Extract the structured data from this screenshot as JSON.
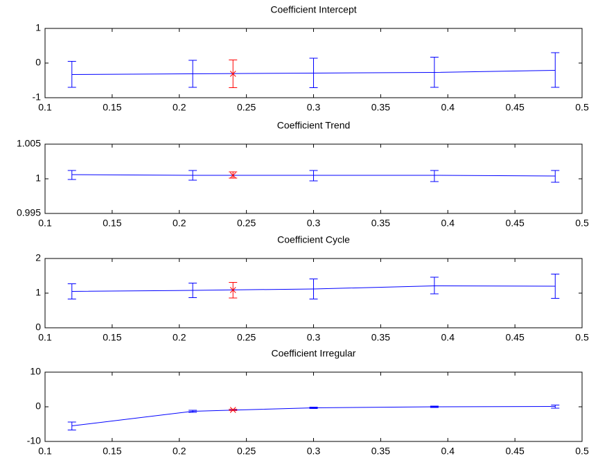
{
  "chart_data": [
    {
      "type": "errorbar",
      "title": "Coefficient Intercept",
      "xlim": [
        0.1,
        0.5
      ],
      "xticks": [
        0.1,
        0.15,
        0.2,
        0.25,
        0.3,
        0.35,
        0.4,
        0.45,
        0.5
      ],
      "ylim": [
        -1,
        1
      ],
      "yticks": [
        -1,
        0,
        1
      ],
      "series": [
        {
          "color": "#0000ff",
          "x": [
            0.12,
            0.21,
            0.3,
            0.39,
            0.48
          ],
          "values": [
            -0.33,
            -0.31,
            -0.29,
            -0.27,
            -0.21
          ],
          "lower": [
            -0.7,
            -0.7,
            -0.71,
            -0.7,
            -0.7
          ],
          "upper": [
            0.05,
            0.08,
            0.14,
            0.17,
            0.3
          ]
        },
        {
          "color": "#ff0000",
          "marker": "x",
          "x": [
            0.24
          ],
          "values": [
            -0.31
          ],
          "lower": [
            -0.71
          ],
          "upper": [
            0.09
          ]
        }
      ]
    },
    {
      "type": "errorbar",
      "title": "Coefficient Trend",
      "xlim": [
        0.1,
        0.5
      ],
      "xticks": [
        0.1,
        0.15,
        0.2,
        0.25,
        0.3,
        0.35,
        0.4,
        0.45,
        0.5
      ],
      "ylim": [
        0.995,
        1.005
      ],
      "yticks": [
        0.995,
        1,
        1.005
      ],
      "series": [
        {
          "color": "#0000ff",
          "x": [
            0.12,
            0.21,
            0.3,
            0.39,
            0.48
          ],
          "values": [
            1.0006,
            1.0005,
            1.0005,
            1.0005,
            1.0004
          ],
          "lower": [
            0.9999,
            0.9998,
            0.9997,
            0.9996,
            0.9995
          ],
          "upper": [
            1.0012,
            1.0012,
            1.0012,
            1.0012,
            1.0012
          ]
        },
        {
          "color": "#ff0000",
          "marker": "x",
          "x": [
            0.24
          ],
          "values": [
            1.0005
          ],
          "lower": [
            1.0001
          ],
          "upper": [
            1.001
          ]
        }
      ]
    },
    {
      "type": "errorbar",
      "title": "Coefficient Cycle",
      "xlim": [
        0.1,
        0.5
      ],
      "xticks": [
        0.1,
        0.15,
        0.2,
        0.25,
        0.3,
        0.35,
        0.4,
        0.45,
        0.5
      ],
      "ylim": [
        0,
        2
      ],
      "yticks": [
        0,
        1,
        2
      ],
      "series": [
        {
          "color": "#0000ff",
          "x": [
            0.12,
            0.21,
            0.3,
            0.39,
            0.48
          ],
          "values": [
            1.05,
            1.08,
            1.12,
            1.21,
            1.2
          ],
          "lower": [
            0.83,
            0.87,
            0.83,
            0.98,
            0.85
          ],
          "upper": [
            1.27,
            1.29,
            1.41,
            1.46,
            1.55
          ]
        },
        {
          "color": "#ff0000",
          "marker": "x",
          "x": [
            0.24
          ],
          "values": [
            1.09
          ],
          "lower": [
            0.86
          ],
          "upper": [
            1.31
          ]
        }
      ]
    },
    {
      "type": "errorbar",
      "title": "Coefficient Irregular",
      "xlim": [
        0.1,
        0.5
      ],
      "xticks": [
        0.1,
        0.15,
        0.2,
        0.25,
        0.3,
        0.35,
        0.4,
        0.45,
        0.5
      ],
      "ylim": [
        -10,
        10
      ],
      "yticks": [
        -10,
        0,
        10
      ],
      "series": [
        {
          "color": "#0000ff",
          "x": [
            0.12,
            0.21,
            0.3,
            0.39,
            0.48
          ],
          "values": [
            -5.5,
            -1.3,
            -0.3,
            0,
            0.1
          ],
          "lower": [
            -6.7,
            -1.6,
            -0.5,
            -0.2,
            -0.4
          ],
          "upper": [
            -4.4,
            -1.0,
            -0.1,
            0.2,
            0.5
          ]
        },
        {
          "color": "#ff0000",
          "marker": "x",
          "x": [
            0.24
          ],
          "values": [
            -0.9
          ],
          "lower": [
            -1.1
          ],
          "upper": [
            -0.7
          ]
        }
      ]
    }
  ]
}
